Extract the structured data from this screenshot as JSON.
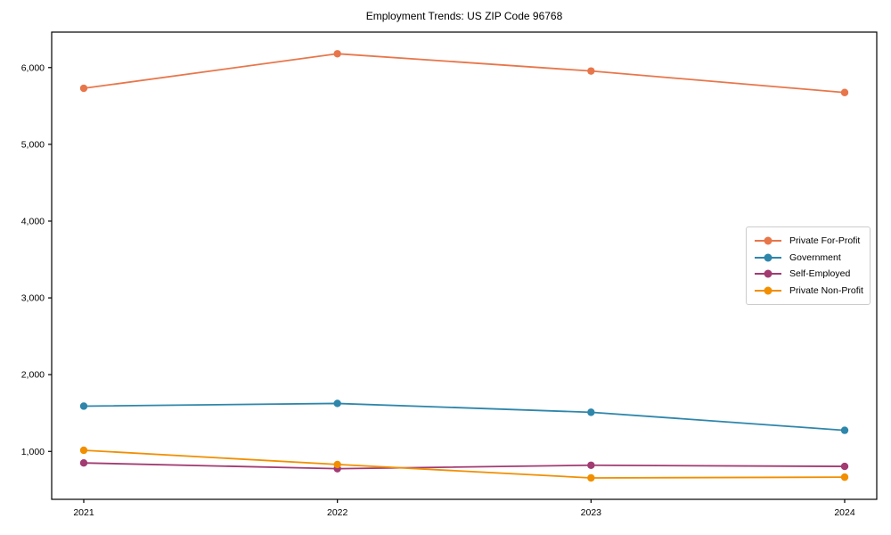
{
  "chart_data": {
    "type": "line",
    "title": "Employment Trends: US ZIP Code 96768",
    "x": [
      2021,
      2022,
      2023,
      2024
    ],
    "x_tick_labels": [
      "2021",
      "2022",
      "2023",
      "2024"
    ],
    "series": [
      {
        "name": "Private For-Profit",
        "color": "#E8764B",
        "values": [
          5730,
          6180,
          5955,
          5675
        ]
      },
      {
        "name": "Government",
        "color": "#2E86AB",
        "values": [
          1590,
          1625,
          1510,
          1275
        ]
      },
      {
        "name": "Self-Employed",
        "color": "#A23B72",
        "values": [
          850,
          775,
          820,
          805
        ]
      },
      {
        "name": "Private Non-Profit",
        "color": "#F18F01",
        "values": [
          1015,
          830,
          655,
          665
        ]
      }
    ],
    "yticks": [
      1000,
      2000,
      3000,
      4000,
      5000,
      6000
    ],
    "ytick_labels": [
      "1,000",
      "2,000",
      "3,000",
      "4,000",
      "5,000",
      "6,000"
    ],
    "ylim": [
      376,
      6462
    ],
    "xlabel": "",
    "ylabel": "",
    "grid": false,
    "legend_position": "right-center",
    "marker": "circle",
    "axis_color": "#000000"
  }
}
